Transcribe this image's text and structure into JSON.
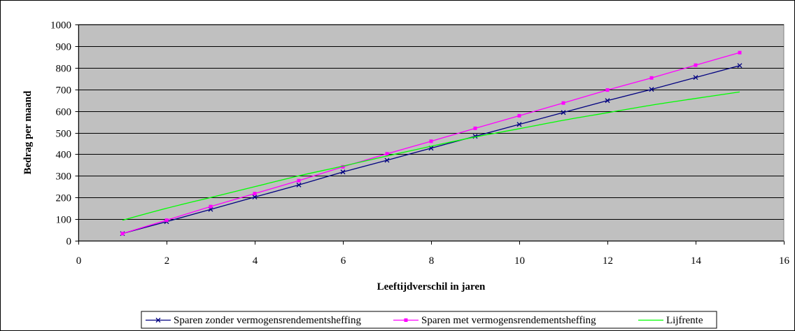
{
  "chart_data": {
    "type": "line",
    "title": "",
    "xlabel": "Leeftijdverschil in jaren",
    "ylabel": "Bedrag per maand",
    "xlim": [
      0,
      16
    ],
    "ylim": [
      0,
      1000
    ],
    "xticks": [
      0,
      2,
      4,
      6,
      8,
      10,
      12,
      14,
      16
    ],
    "yticks": [
      0,
      100,
      200,
      300,
      400,
      500,
      600,
      700,
      800,
      900,
      1000
    ],
    "grid": "horizontal",
    "plot_background": "#c0c0c0",
    "legend_position": "bottom",
    "series": [
      {
        "name": "Sparen zonder vermogensrendementsheffing",
        "color": "#000080",
        "marker": "x",
        "x": [
          1,
          2,
          3,
          4,
          5,
          6,
          7,
          8,
          9,
          10,
          11,
          12,
          13,
          14,
          15
        ],
        "y": [
          33,
          88,
          145,
          202,
          258,
          318,
          372,
          428,
          483,
          538,
          593,
          648,
          700,
          755,
          810
        ]
      },
      {
        "name": "Sparen met vermogensrendementsheffing",
        "color": "#ff00ff",
        "marker": "square",
        "x": [
          1,
          2,
          3,
          4,
          5,
          6,
          7,
          8,
          9,
          10,
          11,
          12,
          13,
          14,
          15
        ],
        "y": [
          33,
          95,
          158,
          218,
          278,
          342,
          402,
          460,
          520,
          578,
          637,
          697,
          753,
          812,
          870
        ]
      },
      {
        "name": "Lijfrente",
        "color": "#00ff00",
        "marker": "none",
        "x": [
          1,
          2,
          3,
          4,
          5,
          6,
          7,
          8,
          9,
          10,
          11,
          12,
          13,
          14,
          15
        ],
        "y": [
          95,
          150,
          200,
          250,
          300,
          345,
          392,
          437,
          480,
          518,
          557,
          592,
          627,
          658,
          688
        ]
      }
    ]
  }
}
